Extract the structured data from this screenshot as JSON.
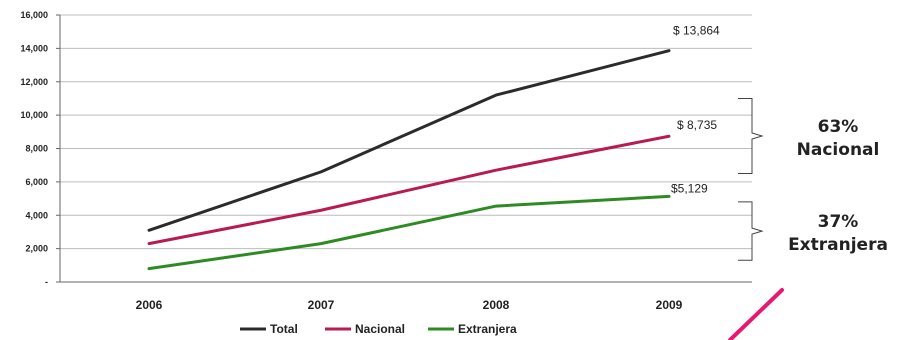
{
  "chart_data": {
    "type": "line",
    "categories": [
      "2006",
      "2007",
      "2008",
      "2009"
    ],
    "ylim": [
      0,
      16000
    ],
    "yticks": [
      "-",
      "2,000",
      "4,000",
      "6,000",
      "8,000",
      "10,000",
      "12,000",
      "14,000",
      "16,000"
    ],
    "ytick_values": [
      0,
      2000,
      4000,
      6000,
      8000,
      10000,
      12000,
      14000,
      16000
    ],
    "grid": true,
    "legend_position": "bottom",
    "series": [
      {
        "name": "Total",
        "color": "#2b2b2b",
        "values": [
          3100,
          6600,
          11200,
          13864
        ],
        "end_label": "$ 13,864"
      },
      {
        "name": "Nacional",
        "color": "#b81c4e",
        "values": [
          2300,
          4300,
          6700,
          8735
        ],
        "end_label": "$ 8,735"
      },
      {
        "name": "Extranjera",
        "color": "#2e8b24",
        "values": [
          800,
          2300,
          4550,
          5129
        ],
        "end_label": "$5,129"
      }
    ],
    "annotations": [
      {
        "pct": "63%",
        "label": "Nacional",
        "range": [
          6500,
          11000
        ]
      },
      {
        "pct": "37%",
        "label": "Extranjera",
        "range": [
          1300,
          4800
        ]
      }
    ],
    "accent_color": "#e8176f"
  }
}
